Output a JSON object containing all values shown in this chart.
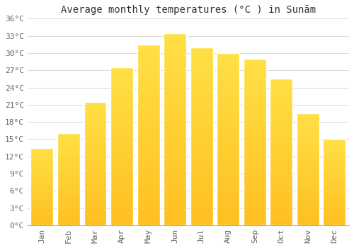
{
  "title": "Average monthly temperatures (°C ) in Sunām",
  "months": [
    "Jan",
    "Feb",
    "Mar",
    "Apr",
    "May",
    "Jun",
    "Jul",
    "Aug",
    "Sep",
    "Oct",
    "Nov",
    "Dec"
  ],
  "values": [
    13.5,
    16.0,
    21.5,
    27.5,
    31.5,
    33.5,
    31.0,
    30.0,
    29.0,
    25.5,
    19.5,
    15.0
  ],
  "bar_color_bottom": "#FFCC44",
  "bar_color_top": "#FFA020",
  "bar_edge_color": "#FFFFFF",
  "background_color": "#FFFFFF",
  "grid_color": "#DDDDDD",
  "ylim": [
    0,
    36
  ],
  "ytick_step": 3,
  "title_fontsize": 10,
  "tick_fontsize": 8,
  "font_family": "monospace"
}
